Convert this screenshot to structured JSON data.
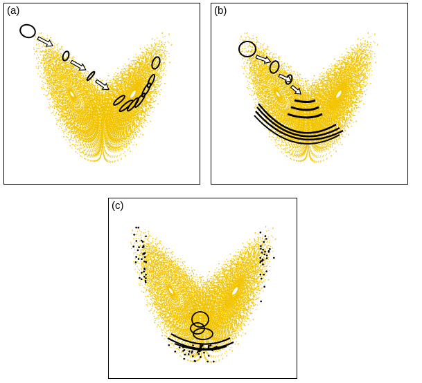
{
  "panels": [
    {
      "id": "a",
      "label": "(a)"
    },
    {
      "id": "b",
      "label": "(b)"
    },
    {
      "id": "c",
      "label": "(c)"
    }
  ],
  "colors": {
    "attractor": "#f2c400",
    "ink": "#000000",
    "arrow_fill": "#ffffff"
  }
}
